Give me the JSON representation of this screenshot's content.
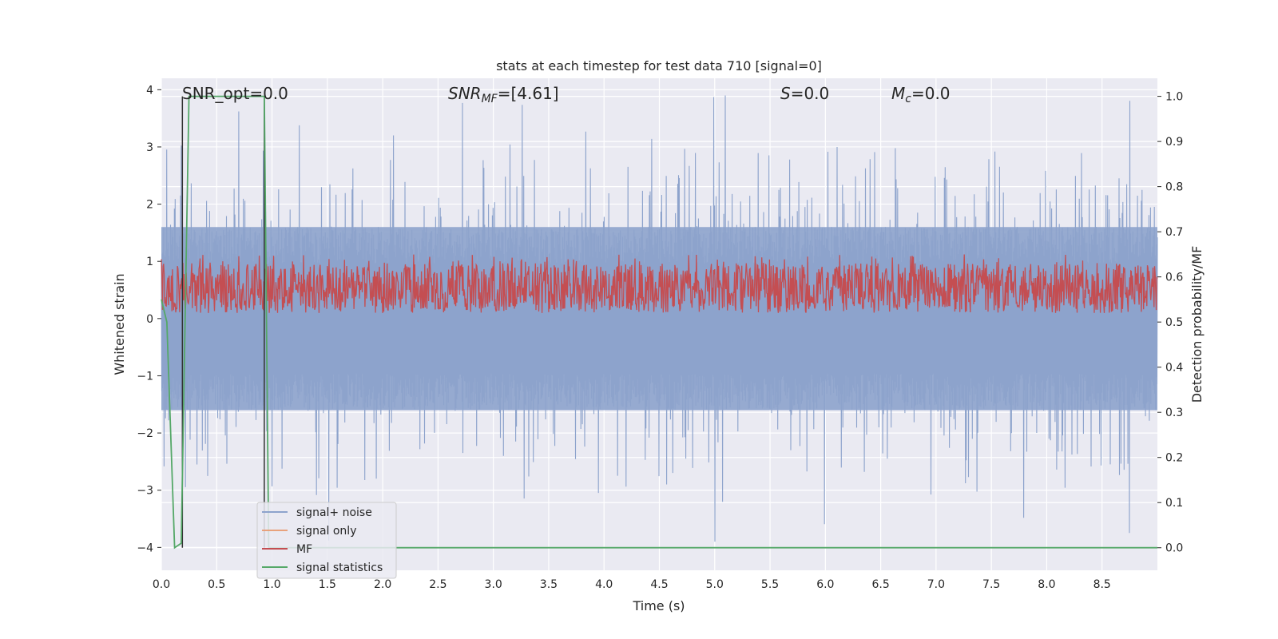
{
  "chart_data": {
    "type": "line",
    "title": "stats at each timestep for test data 710 [signal=0]",
    "xlabel": "Time (s)",
    "ylabel_left": "Whitened strain",
    "ylabel_right": "Detection probability/MF",
    "xlim": [
      0.0,
      9.0
    ],
    "ylim_left": [
      -4.4,
      4.2
    ],
    "ylim_right": [
      -0.05,
      1.04
    ],
    "x_ticks": [
      "0.0",
      "0.5",
      "1.0",
      "1.5",
      "2.0",
      "2.5",
      "3.0",
      "3.5",
      "4.0",
      "4.5",
      "5.0",
      "5.5",
      "6.0",
      "6.5",
      "7.0",
      "7.5",
      "8.0",
      "8.5"
    ],
    "y_left_ticks": [
      "4",
      "3",
      "2",
      "1",
      "0",
      "−1",
      "−2",
      "−3",
      "−4"
    ],
    "y_right_ticks": [
      "1.0",
      "0.9",
      "0.8",
      "0.7",
      "0.6",
      "0.5",
      "0.4",
      "0.3",
      "0.2",
      "0.1",
      "0.0"
    ],
    "grid": true,
    "legend_position": "lower-left",
    "annotations": {
      "snr_opt": "SNR_opt=0.0",
      "snr_mf_main": "SNR",
      "snr_mf_sub": "MF",
      "snr_mf_rest": "=[4.61]",
      "s_main": "S",
      "s_rest": "=0.0",
      "mc_main": "M",
      "mc_sub": "c",
      "mc_rest": "=0.0"
    },
    "series": [
      {
        "name": "signal+ noise",
        "color": "#8da3cc",
        "axis": "left",
        "description_stats": {
          "band_low": -1.6,
          "band_high": 1.6,
          "max_spike": 3.9,
          "min_spike": -4.0
        }
      },
      {
        "name": "signal only",
        "color": "#e8a27c",
        "axis": "left",
        "values": []
      },
      {
        "name": "MF",
        "color": "#c44e52",
        "axis": "right",
        "description_stats": {
          "band_low": 0.52,
          "band_high": 0.63,
          "max_spike": 0.65
        }
      },
      {
        "name": "signal statistics",
        "color": "#55a868",
        "axis": "right",
        "x": [
          0.0,
          0.05,
          0.12,
          0.18,
          0.25,
          0.93,
          0.97,
          1.0,
          9.0
        ],
        "values": [
          0.55,
          0.5,
          0.0,
          0.01,
          1.0,
          1.0,
          0.0,
          0.0,
          0.0
        ]
      }
    ],
    "vertical_markers_x": [
      0.19,
      0.93
    ],
    "marker_color": "#333333"
  }
}
